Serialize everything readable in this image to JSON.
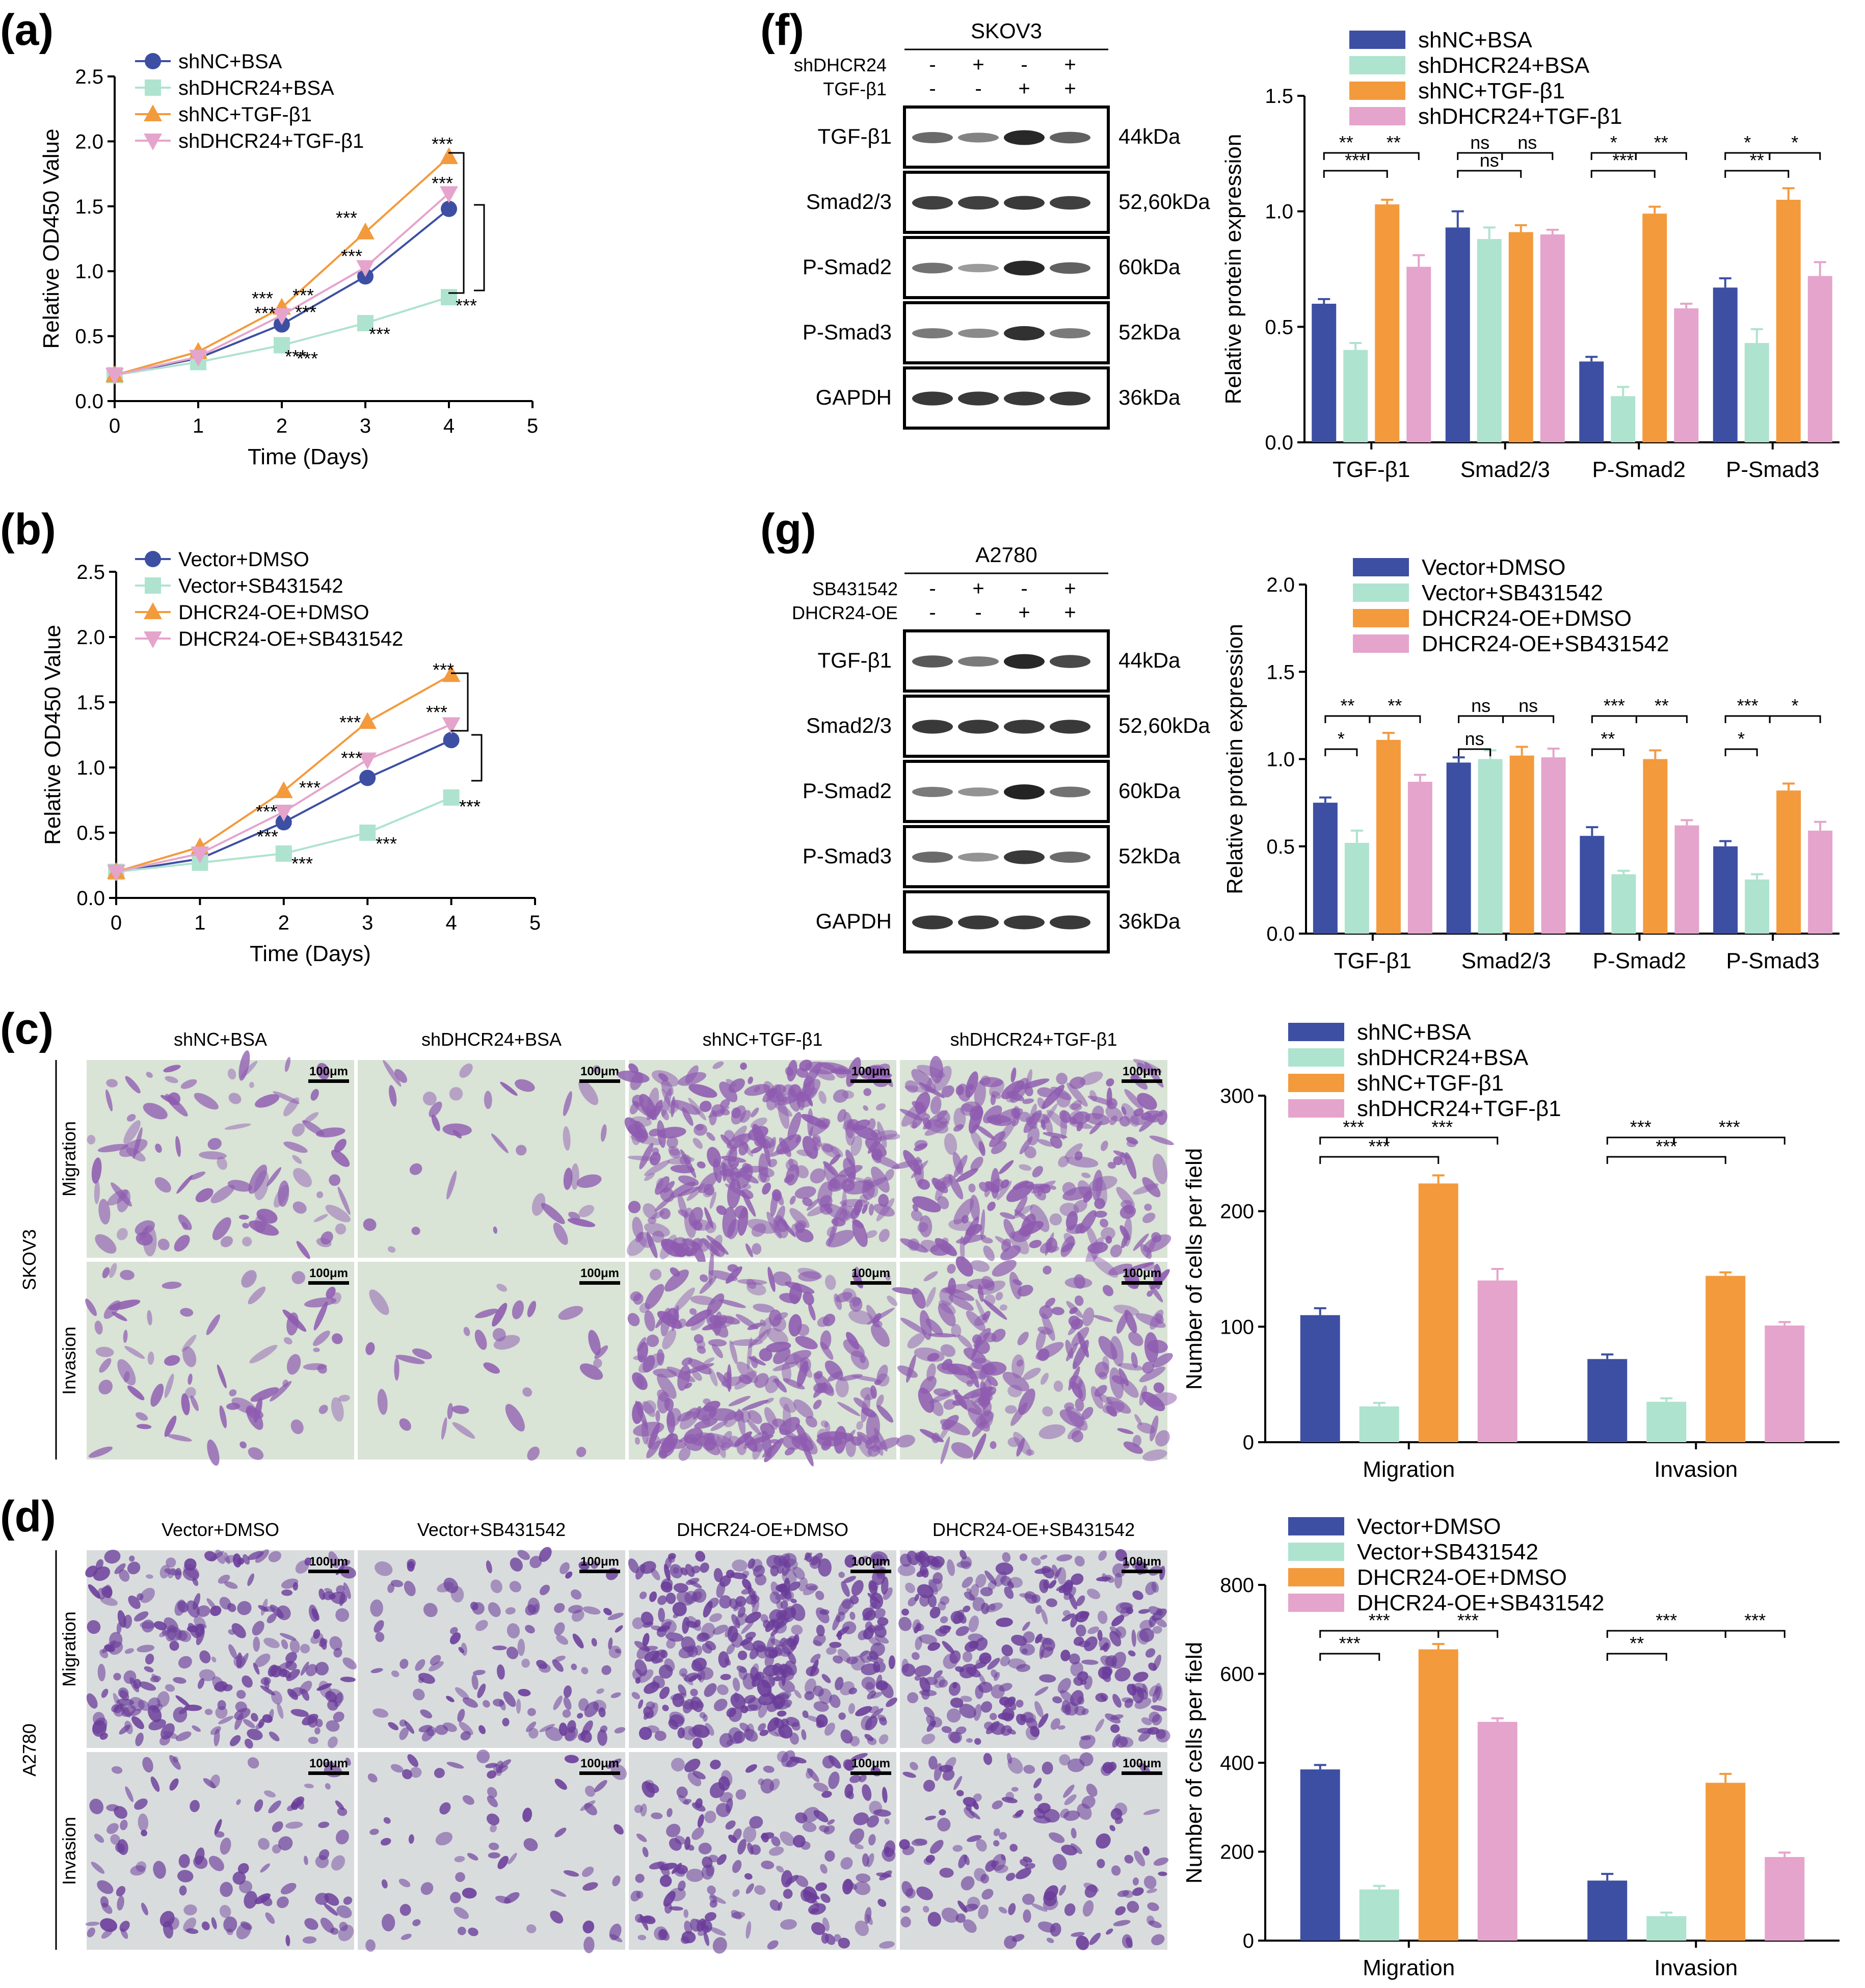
{
  "colors": {
    "blue": "#3d4fa3",
    "mint": "#aee3cf",
    "orange": "#f39a3d",
    "pink": "#e5a4cb",
    "black": "#000000",
    "micro_bg": "#d9e3d6",
    "micro_cell": "#8e5bb0",
    "micro_bg2": "#d9dcdd",
    "micro_cell2": "#6a3c9a"
  },
  "panels": {
    "a": "(a)",
    "b": "(b)",
    "c": "(c)",
    "d": "(d)",
    "f": "(f)",
    "g": "(g)"
  },
  "chart_data": [
    {
      "id": "a",
      "type": "line",
      "xlabel": "Time (Days)",
      "ylabel": "Relative OD450 Value",
      "xlim": [
        0,
        5
      ],
      "ylim": [
        0,
        2.5
      ],
      "xticks": [
        "0",
        "1",
        "2",
        "3",
        "4",
        "5"
      ],
      "yticks": [
        "0.0",
        "0.5",
        "1.0",
        "1.5",
        "2.0",
        "2.5"
      ],
      "x": [
        0,
        1,
        2,
        3,
        4
      ],
      "series": [
        {
          "name": "shNC+BSA",
          "marker": "circle",
          "color": "blue",
          "values": [
            0.2,
            0.33,
            0.59,
            0.96,
            1.48
          ]
        },
        {
          "name": "shDHCR24+BSA",
          "marker": "square",
          "color": "mint",
          "values": [
            0.2,
            0.3,
            0.43,
            0.6,
            0.8
          ]
        },
        {
          "name": "shNC+TGF-β1",
          "marker": "triangle",
          "color": "orange",
          "values": [
            0.2,
            0.38,
            0.72,
            1.3,
            1.88
          ]
        },
        {
          "name": "shDHCR24+TGF-β1",
          "marker": "triangle-down",
          "color": "pink",
          "values": [
            0.2,
            0.34,
            0.66,
            1.03,
            1.6
          ]
        }
      ],
      "annotations": [
        "***",
        "***",
        "***",
        "***",
        "***",
        "***",
        "***",
        "***",
        "***",
        "***",
        "***",
        "***"
      ]
    },
    {
      "id": "b",
      "type": "line",
      "xlabel": "Time (Days)",
      "ylabel": "Relative OD450 Value",
      "xlim": [
        0,
        5
      ],
      "ylim": [
        0,
        2.5
      ],
      "xticks": [
        "0",
        "1",
        "2",
        "3",
        "4",
        "5"
      ],
      "yticks": [
        "0.0",
        "0.5",
        "1.0",
        "1.5",
        "2.0",
        "2.5"
      ],
      "x": [
        0,
        1,
        2,
        3,
        4
      ],
      "series": [
        {
          "name": "Vector+DMSO",
          "marker": "circle",
          "color": "blue",
          "values": [
            0.2,
            0.3,
            0.58,
            0.92,
            1.21
          ]
        },
        {
          "name": "Vector+SB431542",
          "marker": "square",
          "color": "mint",
          "values": [
            0.2,
            0.27,
            0.34,
            0.5,
            0.77
          ]
        },
        {
          "name": "DHCR24-OE+DMSO",
          "marker": "triangle",
          "color": "orange",
          "values": [
            0.2,
            0.39,
            0.82,
            1.35,
            1.71
          ]
        },
        {
          "name": "DHCR24-OE+SB431542",
          "marker": "triangle-down",
          "color": "pink",
          "values": [
            0.2,
            0.34,
            0.66,
            1.06,
            1.33
          ]
        }
      ],
      "annotations": [
        "***",
        "***",
        "***",
        "***",
        "***",
        "***",
        "***",
        "***",
        "***",
        "***",
        "***"
      ]
    },
    {
      "id": "f",
      "type": "bar",
      "ylabel": "Relative protein expression",
      "ylim": [
        0,
        1.5
      ],
      "yticks": [
        "0.0",
        "0.5",
        "1.0",
        "1.5"
      ],
      "categories": [
        "TGF-β1",
        "Smad2/3",
        "P-Smad2",
        "P-Smad3"
      ],
      "series": [
        {
          "name": "shNC+BSA",
          "color": "blue",
          "values": [
            0.6,
            0.93,
            0.35,
            0.67
          ],
          "err": [
            0.02,
            0.07,
            0.02,
            0.04
          ]
        },
        {
          "name": "shDHCR24+BSA",
          "color": "mint",
          "values": [
            0.4,
            0.88,
            0.2,
            0.43
          ],
          "err": [
            0.03,
            0.05,
            0.04,
            0.06
          ]
        },
        {
          "name": "shNC+TGF-β1",
          "color": "orange",
          "values": [
            1.03,
            0.91,
            0.99,
            1.05
          ],
          "err": [
            0.02,
            0.03,
            0.03,
            0.05
          ]
        },
        {
          "name": "shDHCR24+TGF-β1",
          "color": "pink",
          "values": [
            0.76,
            0.9,
            0.58,
            0.72
          ],
          "err": [
            0.05,
            0.02,
            0.02,
            0.06
          ]
        }
      ],
      "annotations": [
        "**",
        "**",
        "***",
        "ns",
        "ns",
        "ns",
        "*",
        "**",
        "***",
        "*",
        "*",
        "**"
      ]
    },
    {
      "id": "g",
      "type": "bar",
      "ylabel": "Relative protein expression",
      "ylim": [
        0,
        2.0
      ],
      "yticks": [
        "0.0",
        "0.5",
        "1.0",
        "1.5",
        "2.0"
      ],
      "categories": [
        "TGF-β1",
        "Smad2/3",
        "P-Smad2",
        "P-Smad3"
      ],
      "series": [
        {
          "name": "Vector+DMSO",
          "color": "blue",
          "values": [
            0.75,
            0.98,
            0.56,
            0.5
          ],
          "err": [
            0.03,
            0.03,
            0.05,
            0.03
          ]
        },
        {
          "name": "Vector+SB431542",
          "color": "mint",
          "values": [
            0.52,
            1.0,
            0.34,
            0.31
          ],
          "err": [
            0.07,
            0.05,
            0.02,
            0.03
          ]
        },
        {
          "name": "DHCR24-OE+DMSO",
          "color": "orange",
          "values": [
            1.11,
            1.02,
            1.0,
            0.82
          ],
          "err": [
            0.04,
            0.05,
            0.05,
            0.04
          ]
        },
        {
          "name": "DHCR24-OE+SB431542",
          "color": "pink",
          "values": [
            0.87,
            1.01,
            0.62,
            0.59
          ],
          "err": [
            0.04,
            0.05,
            0.03,
            0.05
          ]
        }
      ],
      "annotations": [
        "**",
        "**",
        "*",
        "ns",
        "ns",
        "ns",
        "***",
        "**",
        "**",
        "***",
        "*",
        "*"
      ]
    },
    {
      "id": "c",
      "type": "bar",
      "ylabel": "Number of cells per field",
      "ylim": [
        0,
        300
      ],
      "yticks": [
        "0",
        "100",
        "200",
        "300"
      ],
      "categories": [
        "Migration",
        "Invasion"
      ],
      "series": [
        {
          "name": "shNC+BSA",
          "color": "blue",
          "values": [
            110,
            72
          ],
          "err": [
            6,
            4
          ]
        },
        {
          "name": "shDHCR24+BSA",
          "color": "mint",
          "values": [
            31,
            35
          ],
          "err": [
            3,
            3
          ]
        },
        {
          "name": "shNC+TGF-β1",
          "color": "orange",
          "values": [
            224,
            144
          ],
          "err": [
            7,
            3
          ]
        },
        {
          "name": "shDHCR24+TGF-β1",
          "color": "pink",
          "values": [
            140,
            101
          ],
          "err": [
            10,
            3
          ]
        }
      ],
      "annotations": [
        "***",
        "***",
        "***",
        "***",
        "***",
        "***"
      ]
    },
    {
      "id": "d",
      "type": "bar",
      "ylabel": "Number of cells per field",
      "ylim": [
        0,
        800
      ],
      "yticks": [
        "0",
        "200",
        "400",
        "600",
        "800"
      ],
      "categories": [
        "Migration",
        "Invasion"
      ],
      "series": [
        {
          "name": "Vector+DMSO",
          "color": "blue",
          "values": [
            385,
            135
          ],
          "err": [
            10,
            15
          ]
        },
        {
          "name": "Vector+SB431542",
          "color": "mint",
          "values": [
            115,
            55
          ],
          "err": [
            8,
            8
          ]
        },
        {
          "name": "DHCR24-OE+DMSO",
          "color": "orange",
          "values": [
            655,
            355
          ],
          "err": [
            12,
            20
          ]
        },
        {
          "name": "DHCR24-OE+SB431542",
          "color": "pink",
          "values": [
            492,
            188
          ],
          "err": [
            8,
            10
          ]
        }
      ],
      "annotations": [
        "***",
        "***",
        "***",
        "***",
        "***",
        "**"
      ]
    }
  ],
  "blots": {
    "f": {
      "cell_line": "SKOV3",
      "cond1": "shDHCR24",
      "cond2": "TGF-β1",
      "signs1": [
        "-",
        "+",
        "-",
        "+"
      ],
      "signs2": [
        "-",
        "-",
        "+",
        "+"
      ],
      "rows": [
        {
          "label": "TGF-β1",
          "kda": "44kDa"
        },
        {
          "label": "Smad2/3",
          "kda": "52,60kDa"
        },
        {
          "label": "P-Smad2",
          "kda": "60kDa"
        },
        {
          "label": "P-Smad3",
          "kda": "52kDa"
        },
        {
          "label": "GAPDH",
          "kda": "36kDa"
        }
      ]
    },
    "g": {
      "cell_line": "A2780",
      "cond1": "SB431542",
      "cond2": "DHCR24-OE",
      "signs1": [
        "-",
        "+",
        "-",
        "+"
      ],
      "signs2": [
        "-",
        "-",
        "+",
        "+"
      ],
      "rows": [
        {
          "label": "TGF-β1",
          "kda": "44kDa"
        },
        {
          "label": "Smad2/3",
          "kda": "52,60kDa"
        },
        {
          "label": "P-Smad2",
          "kda": "60kDa"
        },
        {
          "label": "P-Smad3",
          "kda": "52kDa"
        },
        {
          "label": "GAPDH",
          "kda": "36kDa"
        }
      ]
    }
  },
  "micro": {
    "c": {
      "cell_line": "SKOV3",
      "columns": [
        "shNC+BSA",
        "shDHCR24+BSA",
        "shNC+TGF-β1",
        "shDHCR24+TGF-β1"
      ],
      "rows": [
        "Migration",
        "Invasion"
      ],
      "scale": "100μm"
    },
    "d": {
      "cell_line": "A2780",
      "columns": [
        "Vector+DMSO",
        "Vector+SB431542",
        "DHCR24-OE+DMSO",
        "DHCR24-OE+SB431542"
      ],
      "rows": [
        "Migration",
        "Invasion"
      ],
      "scale": "100μm"
    }
  }
}
